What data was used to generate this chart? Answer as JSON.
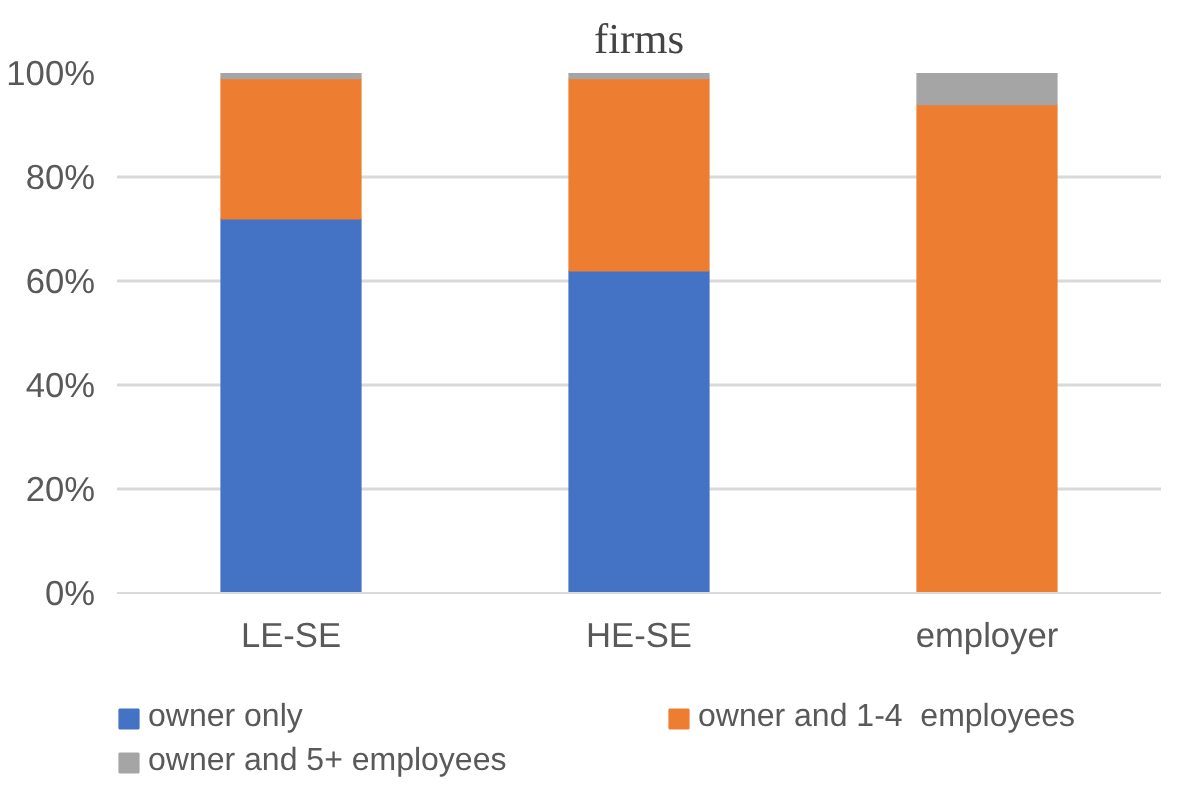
{
  "chart_data": {
    "type": "bar",
    "title": "firms",
    "stacked": true,
    "categories": [
      "LE-SE",
      "HE-SE",
      "employer"
    ],
    "series": [
      {
        "name": "owner only",
        "color": "#4472c4",
        "values": [
          72,
          62,
          0
        ]
      },
      {
        "name": "owner and 1-4  employees",
        "color": "#ed7d31",
        "values": [
          27,
          37,
          94
        ]
      },
      {
        "name": "owner and 5+ employees",
        "color": "#a5a5a5",
        "values": [
          1,
          1,
          6
        ]
      }
    ],
    "ylim": [
      0,
      100
    ],
    "yticks": [
      {
        "value": 0,
        "label": "0%"
      },
      {
        "value": 20,
        "label": "20%"
      },
      {
        "value": 40,
        "label": "40%"
      },
      {
        "value": 60,
        "label": "60%"
      },
      {
        "value": 80,
        "label": "80%"
      },
      {
        "value": 100,
        "label": "100%"
      }
    ],
    "grid": "y",
    "legend": "bottom"
  }
}
